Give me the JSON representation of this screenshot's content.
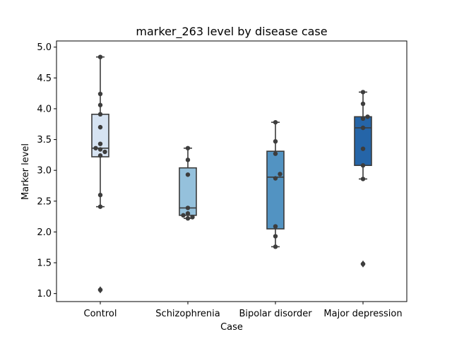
{
  "chart_data": {
    "type": "box",
    "title": "marker_263 level by disease case",
    "xlabel": "Case",
    "ylabel": "Marker level",
    "ylim": [
      0.87,
      5.1
    ],
    "yticks": [
      "1.0",
      "1.5",
      "2.0",
      "2.5",
      "3.0",
      "3.5",
      "4.0",
      "4.5",
      "5.0"
    ],
    "grid": false,
    "categories": [
      "Control",
      "Schizophrenia",
      "Bipolar disorder",
      "Major depression"
    ],
    "colors": [
      "#d6e3f2",
      "#95c1dc",
      "#5293c2",
      "#2565a8"
    ],
    "boxes": [
      {
        "q1": 3.22,
        "median": 3.36,
        "q3": 3.91,
        "whisker_low": 2.41,
        "whisker_high": 4.84,
        "outliers": [
          1.06
        ]
      },
      {
        "q1": 2.27,
        "median": 2.39,
        "q3": 3.04,
        "whisker_low": 2.22,
        "whisker_high": 3.36,
        "outliers": []
      },
      {
        "q1": 2.05,
        "median": 2.89,
        "q3": 3.31,
        "whisker_low": 1.76,
        "whisker_high": 3.78,
        "outliers": []
      },
      {
        "q1": 3.08,
        "median": 3.69,
        "q3": 3.87,
        "whisker_low": 2.86,
        "whisker_high": 4.27,
        "outliers": [
          1.48
        ]
      }
    ],
    "points": [
      [
        4.84,
        4.24,
        4.06,
        3.91,
        3.7,
        3.43,
        3.36,
        3.34,
        3.3,
        3.24,
        2.6,
        2.41,
        1.06
      ],
      [
        3.36,
        3.17,
        2.93,
        2.39,
        2.3,
        2.27,
        2.24,
        2.22
      ],
      [
        3.78,
        3.47,
        3.27,
        2.94,
        2.87,
        2.09,
        1.93,
        1.76
      ],
      [
        4.27,
        4.08,
        3.87,
        3.84,
        3.69,
        3.35,
        3.08,
        2.86,
        1.48
      ]
    ]
  }
}
